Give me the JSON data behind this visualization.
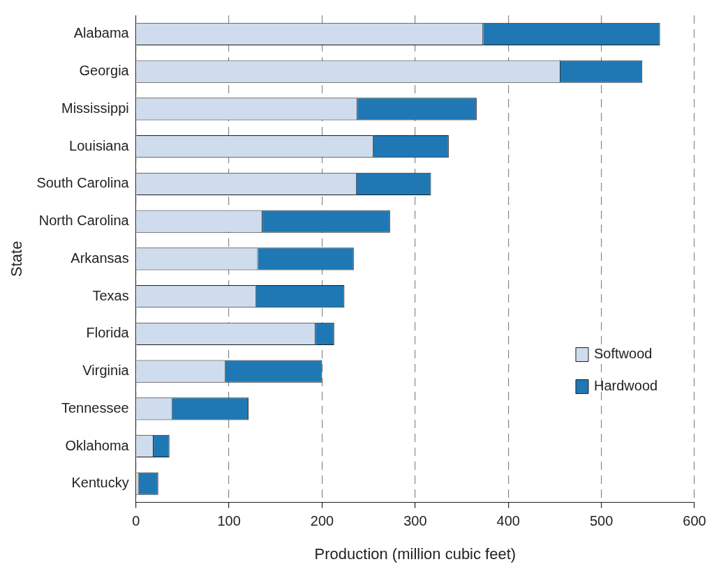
{
  "chart_data": {
    "type": "bar",
    "orientation": "horizontal",
    "stacked": true,
    "xlabel": "Production (million cubic feet)",
    "ylabel": "State",
    "categories": [
      "Alabama",
      "Georgia",
      "Mississippi",
      "Louisiana",
      "South Carolina",
      "North Carolina",
      "Arkansas",
      "Texas",
      "Florida",
      "Virginia",
      "Tennessee",
      "Oklahoma",
      "Kentucky"
    ],
    "series": [
      {
        "name": "Softwood",
        "color": "#cfdcee",
        "values": [
          373,
          456,
          238,
          255,
          237,
          136,
          131,
          129,
          193,
          96,
          39,
          19,
          3
        ]
      },
      {
        "name": "Hardwood",
        "color": "#1f78b4",
        "values": [
          190,
          88,
          128,
          81,
          80,
          137,
          103,
          95,
          20,
          104,
          82,
          17,
          21
        ]
      }
    ],
    "xlim": [
      0,
      600
    ],
    "xticks": [
      0,
      100,
      200,
      300,
      400,
      500,
      600
    ],
    "grid": "x",
    "legend": "bottom right"
  }
}
